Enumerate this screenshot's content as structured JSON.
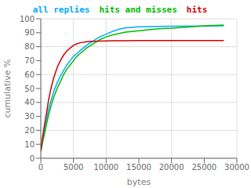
{
  "chart_data": {
    "type": "line",
    "xlabel": "bytes",
    "ylabel": "cumulative %",
    "xlim": [
      0,
      30000
    ],
    "ylim": [
      0,
      100
    ],
    "xticks": [
      0,
      5000,
      10000,
      15000,
      20000,
      25000,
      30000
    ],
    "yticks": [
      0,
      10,
      20,
      30,
      40,
      50,
      60,
      70,
      80,
      90,
      100
    ],
    "grid": true,
    "legend": "top",
    "x": [
      0,
      100,
      300,
      600,
      900,
      1200,
      1600,
      2000,
      2500,
      3000,
      3500,
      4000,
      4500,
      5000,
      5500,
      6000,
      7000,
      8000,
      9000,
      10000,
      11000,
      12000,
      13000,
      15000,
      18000,
      20000,
      25000,
      28000
    ],
    "series": [
      {
        "name": "all replies",
        "color": "#00aaff",
        "values": [
          5,
          8,
          14,
          21,
          28,
          35,
          42,
          48,
          54,
          59,
          63,
          67,
          70,
          73,
          75,
          77,
          81,
          84,
          87,
          89,
          91,
          92.5,
          93.5,
          94.2,
          94.5,
          94.6,
          94.8,
          94.9
        ]
      },
      {
        "name": "hits and misses",
        "color": "#00bb00",
        "values": [
          5,
          7,
          12,
          18,
          25,
          31,
          38,
          44,
          50,
          55,
          60,
          64,
          67,
          70,
          73,
          75,
          79,
          82,
          85,
          87,
          88.5,
          89.5,
          90.5,
          91.5,
          92.8,
          93.2,
          95.0,
          95.5
        ]
      },
      {
        "name": "hits",
        "color": "#cc0000",
        "values": [
          5,
          9,
          16,
          25,
          33,
          42,
          51,
          58,
          65,
          70,
          74,
          77,
          79,
          81,
          82,
          82.8,
          83.5,
          83.8,
          84.0,
          84.1,
          84.2,
          84.25,
          84.3,
          84.35,
          84.4,
          84.42,
          84.45,
          84.47
        ]
      }
    ]
  }
}
